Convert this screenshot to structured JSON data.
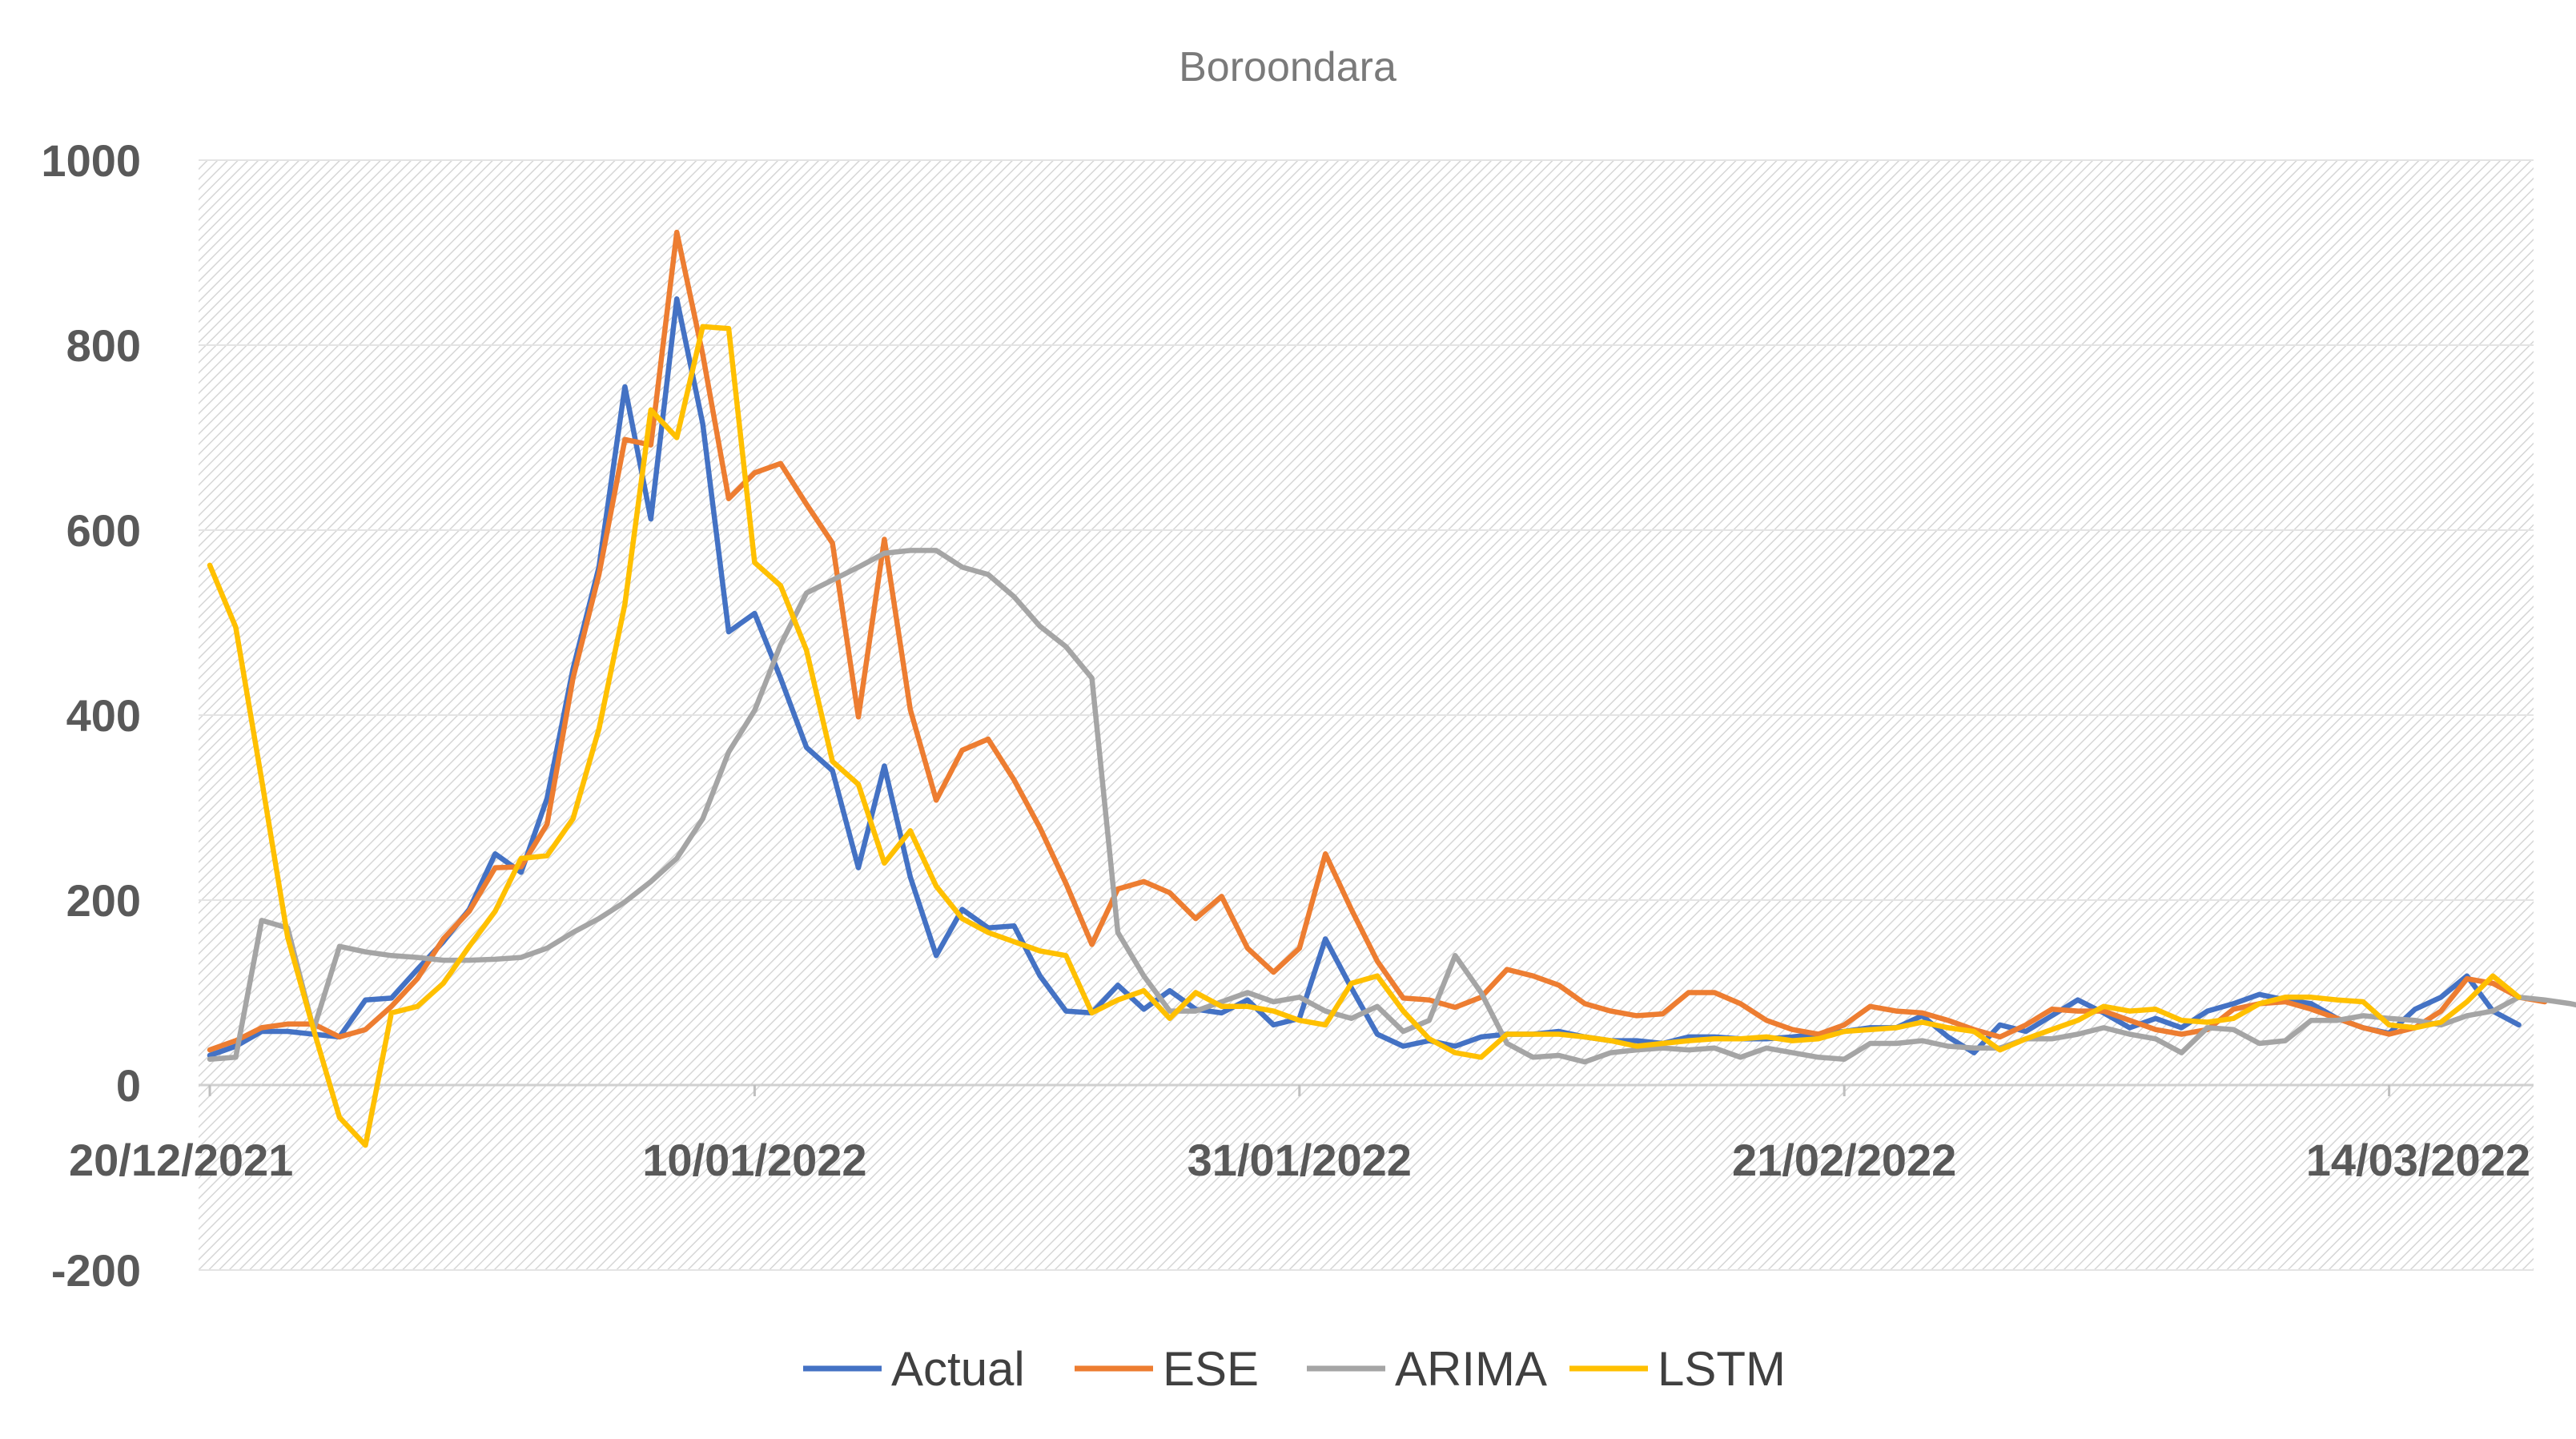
{
  "chart_data": {
    "type": "line",
    "title": "Boroondara",
    "xlabel": "",
    "ylabel": "",
    "ylim": [
      -200,
      1000
    ],
    "yticks": [
      -200,
      0,
      200,
      400,
      600,
      800,
      1000
    ],
    "ytick_labels": [
      "-200",
      "0",
      "200",
      "400",
      "600",
      "800",
      "1000"
    ],
    "x_start": "20/12/2021",
    "xtick_labels": [
      "20/12/2021",
      "10/01/2022",
      "31/01/2022",
      "21/02/2022",
      "14/03/2022"
    ],
    "xtick_index": [
      0,
      21,
      42,
      63,
      84
    ],
    "grid": true,
    "legend_position": "bottom",
    "colors": {
      "Actual": "#4472c4",
      "ESE": "#ed7d31",
      "ARIMA": "#a5a5a5",
      "LSTM": "#ffc000"
    },
    "series": [
      {
        "name": "Actual",
        "values": [
          32,
          42,
          58,
          58,
          55,
          52,
          92,
          94,
          125,
          155,
          190,
          250,
          230,
          310,
          450,
          560,
          755,
          612,
          850,
          715,
          490,
          510,
          440,
          365,
          340,
          235,
          345,
          225,
          140,
          190,
          170,
          172,
          118,
          80,
          78,
          108,
          82,
          102,
          82,
          78,
          92,
          65,
          72,
          158,
          105,
          55,
          42,
          48,
          42,
          52,
          55,
          55,
          58,
          52,
          48,
          48,
          45,
          52,
          52,
          50,
          50,
          52,
          55,
          58,
          62,
          62,
          75,
          52,
          35,
          65,
          58,
          75,
          92,
          78,
          62,
          72,
          62,
          80,
          88,
          98,
          92,
          88,
          72,
          62,
          56,
          82,
          95,
          118,
          80,
          65
        ]
      },
      {
        "name": "ESE",
        "values": [
          38,
          48,
          62,
          66,
          66,
          52,
          60,
          85,
          115,
          158,
          188,
          235,
          236,
          282,
          440,
          552,
          698,
          692,
          922,
          790,
          634,
          662,
          672,
          628,
          586,
          398,
          590,
          406,
          308,
          362,
          374,
          330,
          278,
          218,
          152,
          212,
          220,
          208,
          180,
          204,
          148,
          122,
          148,
          250,
          190,
          134,
          94,
          92,
          84,
          95,
          125,
          118,
          108,
          88,
          80,
          75,
          77,
          100,
          100,
          88,
          70,
          60,
          55,
          65,
          85,
          80,
          78,
          70,
          60,
          52,
          65,
          82,
          80,
          80,
          70,
          60,
          55,
          60,
          82,
          88,
          90,
          82,
          72,
          62,
          55,
          62,
          80,
          115,
          110,
          95,
          90
        ]
      },
      {
        "name": "ARIMA",
        "values": [
          28,
          30,
          178,
          170,
          60,
          150,
          144,
          140,
          138,
          135,
          135,
          136,
          138,
          148,
          165,
          180,
          198,
          220,
          245,
          288,
          360,
          405,
          476,
          532,
          546,
          560,
          575,
          578,
          578,
          560,
          552,
          528,
          496,
          474,
          440,
          165,
          118,
          80,
          80,
          90,
          100,
          90,
          95,
          80,
          72,
          85,
          58,
          70,
          140,
          100,
          45,
          30,
          32,
          25,
          35,
          38,
          40,
          38,
          40,
          30,
          40,
          35,
          30,
          28,
          45,
          45,
          48,
          42,
          40,
          40,
          50,
          50,
          55,
          62,
          55,
          50,
          35,
          62,
          60,
          45,
          48,
          70,
          70,
          75,
          72,
          70,
          65,
          75,
          80,
          95,
          92,
          88,
          82,
          78,
          80,
          80,
          85
        ]
      },
      {
        "name": "LSTM",
        "values": [
          562,
          495,
          330,
          160,
          60,
          -35,
          -65,
          78,
          85,
          110,
          150,
          188,
          245,
          248,
          288,
          385,
          520,
          730,
          700,
          820,
          818,
          565,
          540,
          470,
          350,
          325,
          240,
          275,
          215,
          180,
          165,
          155,
          145,
          140,
          78,
          92,
          102,
          72,
          100,
          85,
          85,
          80,
          70,
          65,
          110,
          118,
          80,
          50,
          35,
          30,
          55,
          55,
          55,
          52,
          48,
          42,
          45,
          48,
          50,
          50,
          52,
          48,
          50,
          58,
          60,
          62,
          68,
          62,
          58,
          38,
          50,
          60,
          70,
          85,
          80,
          82,
          70,
          68,
          72,
          88,
          95,
          95,
          92,
          90,
          65,
          62,
          68,
          90,
          118,
          95
        ]
      }
    ]
  },
  "legend": {
    "items": [
      {
        "label": "Actual"
      },
      {
        "label": "ESE"
      },
      {
        "label": "ARIMA"
      },
      {
        "label": "LSTM"
      }
    ]
  }
}
